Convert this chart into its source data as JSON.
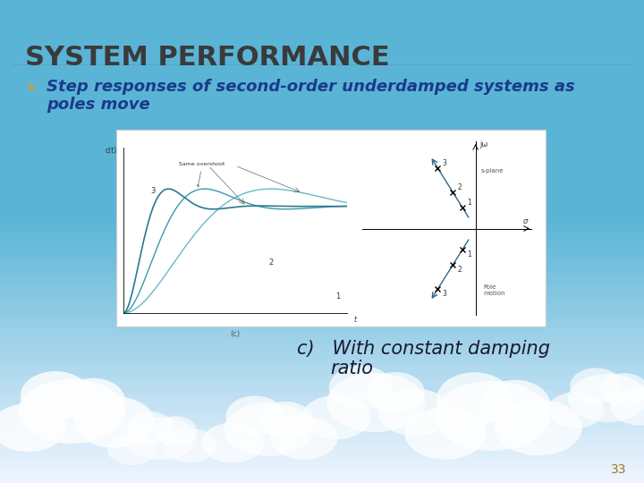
{
  "title": "SYSTEM PERFORMANCE",
  "title_color": "#3a3a3a",
  "title_fontsize": 22,
  "bg_top_color": "#5ab4d6",
  "bg_mid_color": "#7ec8e3",
  "bg_bottom_color": "#daeef8",
  "bullet_color": "#c8a040",
  "bullet_text_line1": "Step responses of second-order underdamped systems as",
  "bullet_text_line2": "poles move",
  "bullet_text_color": "#1a3a8a",
  "bullet_fontsize": 13,
  "caption_line1": "c)   With constant damping",
  "caption_line2": "ratio",
  "caption_fontsize": 15,
  "caption_color": "#1a1a2e",
  "page_number": "33",
  "page_number_color": "#9a7820",
  "page_number_fontsize": 10,
  "curve_color1": "#5ab0c0",
  "curve_color2": "#3a9ab0",
  "curve_color3": "#2a7a90",
  "pole_arrow_color": "#336688",
  "teal_dark": "#2a7a90",
  "teal_mid": "#3a9aaa",
  "teal_light": "#6ab8c8"
}
